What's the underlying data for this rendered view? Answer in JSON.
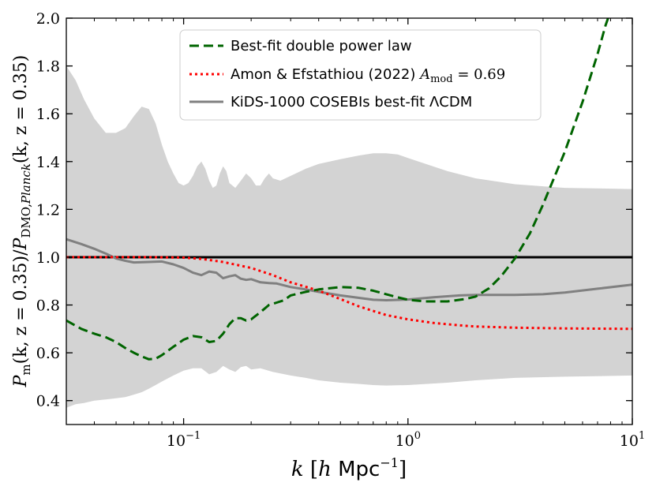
{
  "chart_data": {
    "type": "line",
    "xscale": "log",
    "xlim": [
      0.03,
      10
    ],
    "ylim": [
      0.3,
      2.0
    ],
    "grid": false,
    "legend_position": "top-center",
    "xlabel": "k [h Mpc⁻¹]",
    "ylabel": "Pₘ(k, z = 0.35)/P_DMO,Planck(k, z = 0.35)",
    "x_ticks": [
      {
        "value": 0.1,
        "base": "10",
        "exp": "−1"
      },
      {
        "value": 1,
        "base": "10",
        "exp": "0"
      },
      {
        "value": 10,
        "base": "10",
        "exp": "1"
      }
    ],
    "y_ticks": [
      {
        "value": 0.4,
        "label": "0.4"
      },
      {
        "value": 0.6,
        "label": "0.6"
      },
      {
        "value": 0.8,
        "label": "0.8"
      },
      {
        "value": 1.0,
        "label": "1.0"
      },
      {
        "value": 1.2,
        "label": "1.2"
      },
      {
        "value": 1.4,
        "label": "1.4"
      },
      {
        "value": 1.6,
        "label": "1.6"
      },
      {
        "value": 1.8,
        "label": "1.8"
      },
      {
        "value": 2.0,
        "label": "2.0"
      }
    ],
    "band": {
      "color": "#d3d3d3",
      "upper": [
        [
          0.03,
          1.8
        ],
        [
          0.033,
          1.74
        ],
        [
          0.036,
          1.66
        ],
        [
          0.04,
          1.58
        ],
        [
          0.045,
          1.52
        ],
        [
          0.05,
          1.52
        ],
        [
          0.055,
          1.54
        ],
        [
          0.06,
          1.59
        ],
        [
          0.065,
          1.63
        ],
        [
          0.07,
          1.62
        ],
        [
          0.075,
          1.56
        ],
        [
          0.08,
          1.47
        ],
        [
          0.085,
          1.4
        ],
        [
          0.09,
          1.35
        ],
        [
          0.095,
          1.31
        ],
        [
          0.1,
          1.3
        ],
        [
          0.105,
          1.31
        ],
        [
          0.11,
          1.34
        ],
        [
          0.115,
          1.38
        ],
        [
          0.12,
          1.4
        ],
        [
          0.125,
          1.37
        ],
        [
          0.13,
          1.32
        ],
        [
          0.135,
          1.29
        ],
        [
          0.14,
          1.3
        ],
        [
          0.145,
          1.35
        ],
        [
          0.15,
          1.38
        ],
        [
          0.155,
          1.36
        ],
        [
          0.16,
          1.31
        ],
        [
          0.17,
          1.29
        ],
        [
          0.18,
          1.32
        ],
        [
          0.19,
          1.35
        ],
        [
          0.2,
          1.33
        ],
        [
          0.21,
          1.3
        ],
        [
          0.22,
          1.3
        ],
        [
          0.23,
          1.33
        ],
        [
          0.24,
          1.35
        ],
        [
          0.25,
          1.33
        ],
        [
          0.27,
          1.32
        ],
        [
          0.3,
          1.34
        ],
        [
          0.35,
          1.37
        ],
        [
          0.4,
          1.39
        ],
        [
          0.5,
          1.41
        ],
        [
          0.6,
          1.425
        ],
        [
          0.7,
          1.435
        ],
        [
          0.8,
          1.435
        ],
        [
          0.9,
          1.43
        ],
        [
          1.0,
          1.415
        ],
        [
          1.2,
          1.39
        ],
        [
          1.5,
          1.36
        ],
        [
          2.0,
          1.33
        ],
        [
          3.0,
          1.305
        ],
        [
          5.0,
          1.29
        ],
        [
          10.0,
          1.285
        ]
      ],
      "lower": [
        [
          0.03,
          0.37
        ],
        [
          0.033,
          0.385
        ],
        [
          0.036,
          0.39
        ],
        [
          0.04,
          0.4
        ],
        [
          0.045,
          0.405
        ],
        [
          0.05,
          0.41
        ],
        [
          0.055,
          0.415
        ],
        [
          0.06,
          0.425
        ],
        [
          0.065,
          0.435
        ],
        [
          0.07,
          0.45
        ],
        [
          0.075,
          0.465
        ],
        [
          0.08,
          0.48
        ],
        [
          0.09,
          0.505
        ],
        [
          0.1,
          0.525
        ],
        [
          0.11,
          0.535
        ],
        [
          0.12,
          0.535
        ],
        [
          0.13,
          0.51
        ],
        [
          0.14,
          0.52
        ],
        [
          0.15,
          0.545
        ],
        [
          0.16,
          0.53
        ],
        [
          0.17,
          0.52
        ],
        [
          0.18,
          0.54
        ],
        [
          0.19,
          0.545
        ],
        [
          0.2,
          0.53
        ],
        [
          0.22,
          0.535
        ],
        [
          0.25,
          0.52
        ],
        [
          0.3,
          0.505
        ],
        [
          0.35,
          0.495
        ],
        [
          0.4,
          0.485
        ],
        [
          0.5,
          0.475
        ],
        [
          0.6,
          0.47
        ],
        [
          0.7,
          0.465
        ],
        [
          0.8,
          0.463
        ],
        [
          1.0,
          0.465
        ],
        [
          1.5,
          0.475
        ],
        [
          2.0,
          0.485
        ],
        [
          3.0,
          0.495
        ],
        [
          5.0,
          0.5
        ],
        [
          10.0,
          0.505
        ]
      ]
    },
    "reference_line": {
      "y": 1.0,
      "color": "#000000"
    },
    "series": [
      {
        "name": "Best-fit double power law",
        "color": "#006400",
        "style": "dashed",
        "points": [
          [
            0.03,
            0.735
          ],
          [
            0.035,
            0.7
          ],
          [
            0.04,
            0.68
          ],
          [
            0.045,
            0.665
          ],
          [
            0.05,
            0.645
          ],
          [
            0.055,
            0.62
          ],
          [
            0.06,
            0.6
          ],
          [
            0.065,
            0.585
          ],
          [
            0.07,
            0.573
          ],
          [
            0.075,
            0.575
          ],
          [
            0.08,
            0.59
          ],
          [
            0.09,
            0.625
          ],
          [
            0.1,
            0.655
          ],
          [
            0.11,
            0.67
          ],
          [
            0.12,
            0.665
          ],
          [
            0.13,
            0.645
          ],
          [
            0.14,
            0.65
          ],
          [
            0.15,
            0.68
          ],
          [
            0.16,
            0.72
          ],
          [
            0.17,
            0.745
          ],
          [
            0.18,
            0.745
          ],
          [
            0.19,
            0.735
          ],
          [
            0.2,
            0.74
          ],
          [
            0.22,
            0.77
          ],
          [
            0.24,
            0.8
          ],
          [
            0.26,
            0.81
          ],
          [
            0.28,
            0.82
          ],
          [
            0.3,
            0.84
          ],
          [
            0.35,
            0.855
          ],
          [
            0.4,
            0.865
          ],
          [
            0.5,
            0.875
          ],
          [
            0.6,
            0.872
          ],
          [
            0.7,
            0.86
          ],
          [
            0.8,
            0.845
          ],
          [
            0.9,
            0.832
          ],
          [
            1.0,
            0.822
          ],
          [
            1.2,
            0.815
          ],
          [
            1.5,
            0.815
          ],
          [
            1.8,
            0.825
          ],
          [
            2.0,
            0.835
          ],
          [
            2.3,
            0.87
          ],
          [
            2.6,
            0.92
          ],
          [
            3.0,
            0.995
          ],
          [
            3.5,
            1.1
          ],
          [
            4.0,
            1.22
          ],
          [
            5.0,
            1.44
          ],
          [
            6.0,
            1.65
          ],
          [
            7.0,
            1.85
          ],
          [
            7.6,
            1.97
          ],
          [
            7.8,
            2.0
          ]
        ]
      },
      {
        "name": "Amon & Efstathiou (2022) A_mod = 0.69",
        "color": "#ff0000",
        "style": "dotted",
        "points": [
          [
            0.03,
            1.0
          ],
          [
            0.05,
            1.0
          ],
          [
            0.07,
            1.0
          ],
          [
            0.1,
            0.998
          ],
          [
            0.12,
            0.993
          ],
          [
            0.15,
            0.98
          ],
          [
            0.2,
            0.955
          ],
          [
            0.25,
            0.925
          ],
          [
            0.3,
            0.895
          ],
          [
            0.4,
            0.86
          ],
          [
            0.5,
            0.825
          ],
          [
            0.6,
            0.795
          ],
          [
            0.7,
            0.775
          ],
          [
            0.8,
            0.758
          ],
          [
            1.0,
            0.74
          ],
          [
            1.3,
            0.725
          ],
          [
            1.7,
            0.715
          ],
          [
            2.0,
            0.71
          ],
          [
            3.0,
            0.705
          ],
          [
            5.0,
            0.702
          ],
          [
            10.0,
            0.7
          ]
        ]
      },
      {
        "name": "KiDS-1000 COSEBIs best-fit ΛCDM",
        "color": "#808080",
        "style": "solid",
        "points": [
          [
            0.03,
            1.075
          ],
          [
            0.035,
            1.055
          ],
          [
            0.04,
            1.035
          ],
          [
            0.045,
            1.015
          ],
          [
            0.05,
            0.995
          ],
          [
            0.055,
            0.985
          ],
          [
            0.06,
            0.978
          ],
          [
            0.07,
            0.98
          ],
          [
            0.08,
            0.982
          ],
          [
            0.09,
            0.97
          ],
          [
            0.1,
            0.955
          ],
          [
            0.11,
            0.935
          ],
          [
            0.12,
            0.925
          ],
          [
            0.13,
            0.94
          ],
          [
            0.14,
            0.935
          ],
          [
            0.15,
            0.912
          ],
          [
            0.16,
            0.92
          ],
          [
            0.17,
            0.925
          ],
          [
            0.18,
            0.91
          ],
          [
            0.19,
            0.905
          ],
          [
            0.2,
            0.908
          ],
          [
            0.22,
            0.895
          ],
          [
            0.24,
            0.892
          ],
          [
            0.26,
            0.89
          ],
          [
            0.3,
            0.875
          ],
          [
            0.35,
            0.865
          ],
          [
            0.4,
            0.855
          ],
          [
            0.5,
            0.84
          ],
          [
            0.6,
            0.83
          ],
          [
            0.7,
            0.822
          ],
          [
            0.8,
            0.82
          ],
          [
            1.0,
            0.823
          ],
          [
            1.3,
            0.832
          ],
          [
            1.7,
            0.84
          ],
          [
            2.0,
            0.842
          ],
          [
            3.0,
            0.842
          ],
          [
            4.0,
            0.845
          ],
          [
            5.0,
            0.852
          ],
          [
            7.0,
            0.868
          ],
          [
            10.0,
            0.885
          ]
        ]
      }
    ]
  },
  "legend": {
    "items": [
      {
        "text": "Best-fit double power law"
      },
      {
        "text": "Amon & Efstathiou (2022) ",
        "math": "A",
        "sub": "mod",
        "tail": " = 0.69"
      },
      {
        "text": "KiDS-1000 COSEBIs best-fit ΛCDM"
      }
    ]
  },
  "axes": {
    "xlabel": {
      "k": "k",
      "open": " [",
      "h": "h",
      "unit": " Mpc",
      "exp": "−1",
      "close": "]"
    },
    "ylabel": {
      "P1": "P",
      "sub1": "m",
      "mid": "(k, z = 0.35)/",
      "P2": "P",
      "sub2": "DMO,",
      "sub2i": "Planck",
      "tail": "(k, z = 0.35)"
    }
  }
}
